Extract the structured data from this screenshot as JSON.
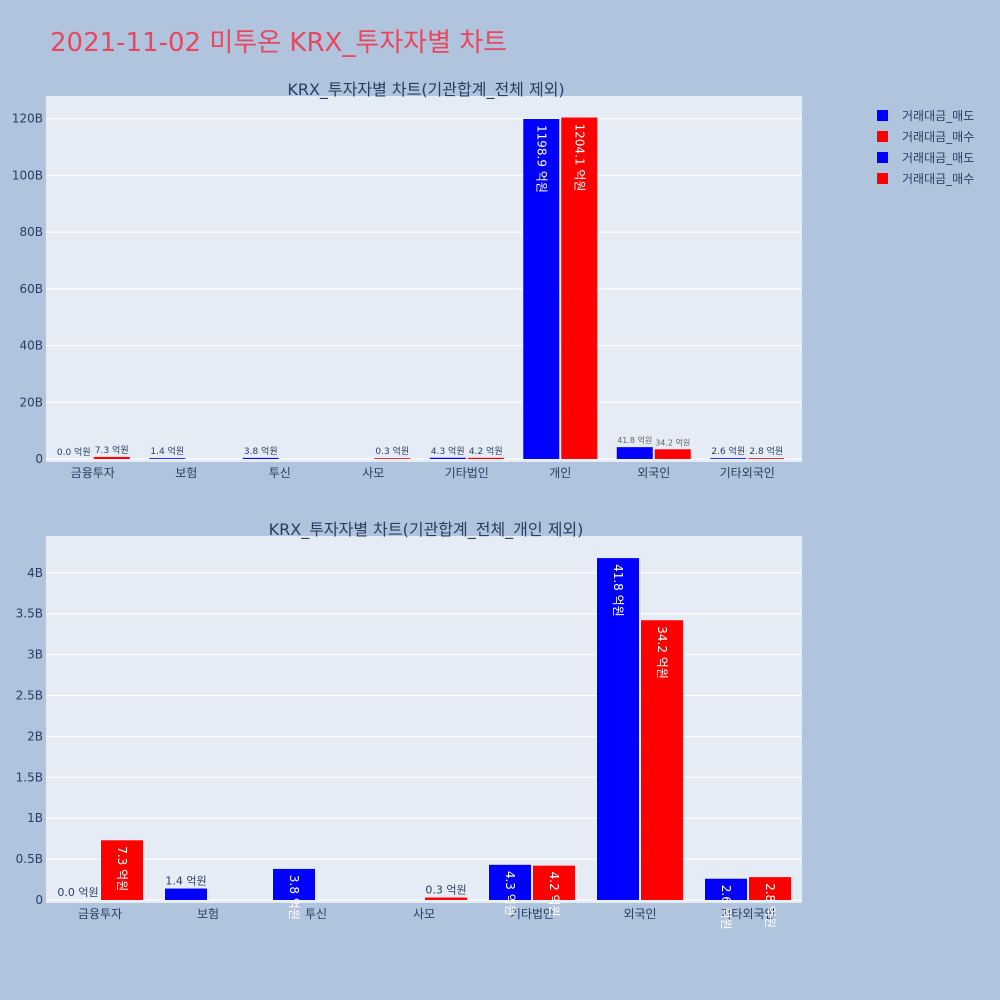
{
  "page_title": "2021-11-02 미투온 KRX_투자자별 차트",
  "colors": {
    "sell": "#0000ff",
    "buy": "#ff0000",
    "plot_bg": "#e5ecf6",
    "page_bg": "#b0c4de",
    "title": "#e8475f"
  },
  "legend": {
    "placement": "top-right",
    "items": [
      {
        "label": "거래대금_매도",
        "color": "#0000ff"
      },
      {
        "label": "거래대금_매수",
        "color": "#ff0000"
      },
      {
        "label": "거래대금_매도",
        "color": "#0000ff"
      },
      {
        "label": "거래대금_매수",
        "color": "#ff0000"
      }
    ]
  },
  "chart_data": [
    {
      "type": "bar",
      "title": "KRX_투자자별 차트(기관합계_전체 제외)",
      "categories": [
        "금융투자",
        "보험",
        "투신",
        "사모",
        "기타법인",
        "개인",
        "외국인",
        "기타외국인"
      ],
      "series": [
        {
          "name": "거래대금_매도",
          "color": "#0000ff",
          "values": [
            0.0,
            0.14,
            0.38,
            0,
            0.43,
            119.89,
            4.18,
            0.26
          ],
          "labels": [
            "0.0 억원",
            "1.4 억원",
            "3.8 억원",
            "",
            "4.3 억원",
            "1198.9 억원",
            "41.8 억원",
            "2.6 억원"
          ]
        },
        {
          "name": "거래대금_매수",
          "color": "#ff0000",
          "values": [
            0.73,
            0,
            0,
            0.03,
            0.42,
            120.41,
            3.42,
            0.28
          ],
          "labels": [
            "7.3 억원",
            "",
            "",
            "0.3 억원",
            "4.2 억원",
            "1204.1 억원",
            "34.2 억원",
            "2.8 억원"
          ]
        }
      ],
      "yticks": [
        0,
        20,
        40,
        60,
        80,
        100,
        120
      ],
      "ytick_labels": [
        "0",
        "20B",
        "40B",
        "60B",
        "80B",
        "100B",
        "120B"
      ],
      "ylim": [
        0,
        128
      ],
      "grid": true
    },
    {
      "type": "bar",
      "title": "KRX_투자자별 차트(기관합계_전체_개인 제외)",
      "categories": [
        "금융투자",
        "보험",
        "투신",
        "사모",
        "기타법인",
        "외국인",
        "기타외국인"
      ],
      "series": [
        {
          "name": "거래대금_매도",
          "color": "#0000ff",
          "values": [
            0.0,
            0.14,
            0.38,
            0,
            0.43,
            4.18,
            0.26
          ],
          "labels": [
            "0.0 억원",
            "1.4 억원",
            "3.8 억원",
            "",
            "4.3 억원",
            "41.8 억원",
            "2.6 억원"
          ]
        },
        {
          "name": "거래대금_매수",
          "color": "#ff0000",
          "values": [
            0.73,
            0,
            0,
            0.03,
            0.42,
            3.42,
            0.28
          ],
          "labels": [
            "7.3 억원",
            "",
            "",
            "0.3 억원",
            "4.2 억원",
            "34.2 억원",
            "2.8 억원"
          ]
        }
      ],
      "yticks": [
        0,
        0.5,
        1,
        1.5,
        2,
        2.5,
        3,
        3.5,
        4
      ],
      "ytick_labels": [
        "0",
        "0.5B",
        "1B",
        "1.5B",
        "2B",
        "2.5B",
        "3B",
        "3.5B",
        "4B"
      ],
      "ylim": [
        0,
        4.45
      ],
      "grid": true
    }
  ]
}
